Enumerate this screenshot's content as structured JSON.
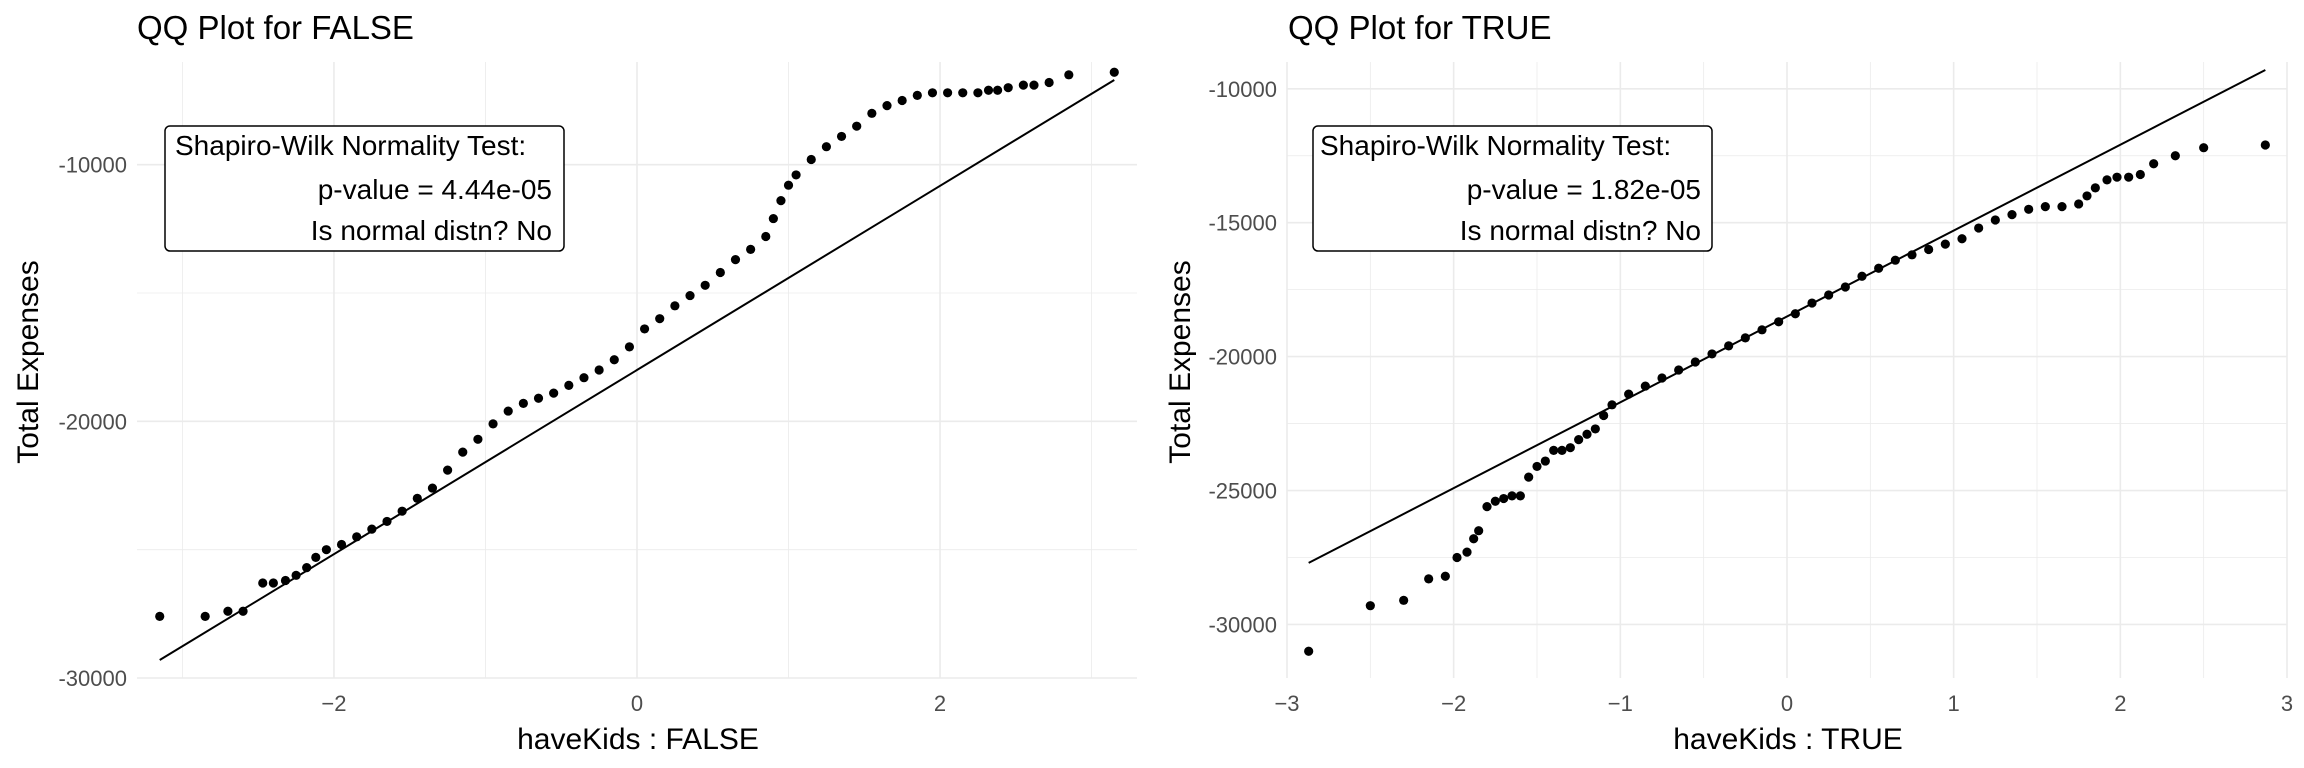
{
  "chart_data": [
    {
      "type": "scatter",
      "title": "QQ Plot for FALSE",
      "xlabel": "haveKids : FALSE",
      "ylabel": "Total Expenses",
      "xlim": [
        -3.3,
        3.3
      ],
      "ylim": [
        -30000,
        -6000
      ],
      "xticks": [
        -2,
        0,
        2
      ],
      "yticks": [
        -30000,
        -20000,
        -10000
      ],
      "grid": true,
      "reference_line": {
        "x": [
          -3.15,
          3.15
        ],
        "y": [
          -29300,
          -6700
        ]
      },
      "annotation": {
        "line1": "Shapiro-Wilk Normality Test:",
        "line2": "p-value =  4.44e-05",
        "line3": "Is normal distn?  No",
        "placement": "top-left"
      },
      "points": [
        [
          -3.15,
          -27600
        ],
        [
          -2.85,
          -27600
        ],
        [
          -2.7,
          -27400
        ],
        [
          -2.6,
          -27400
        ],
        [
          -2.47,
          -26300
        ],
        [
          -2.4,
          -26300
        ],
        [
          -2.32,
          -26200
        ],
        [
          -2.25,
          -26000
        ],
        [
          -2.18,
          -25700
        ],
        [
          -2.12,
          -25300
        ],
        [
          -2.05,
          -25000
        ],
        [
          -1.95,
          -24800
        ],
        [
          -1.85,
          -24500
        ],
        [
          -1.75,
          -24200
        ],
        [
          -1.65,
          -23900
        ],
        [
          -1.55,
          -23500
        ],
        [
          -1.45,
          -23000
        ],
        [
          -1.35,
          -22600
        ],
        [
          -1.25,
          -21900
        ],
        [
          -1.15,
          -21200
        ],
        [
          -1.05,
          -20700
        ],
        [
          -0.95,
          -20100
        ],
        [
          -0.85,
          -19600
        ],
        [
          -0.75,
          -19300
        ],
        [
          -0.65,
          -19100
        ],
        [
          -0.55,
          -18900
        ],
        [
          -0.45,
          -18600
        ],
        [
          -0.35,
          -18300
        ],
        [
          -0.25,
          -18000
        ],
        [
          -0.15,
          -17600
        ],
        [
          -0.05,
          -17100
        ],
        [
          0.05,
          -16400
        ],
        [
          0.15,
          -16000
        ],
        [
          0.25,
          -15500
        ],
        [
          0.35,
          -15100
        ],
        [
          0.45,
          -14700
        ],
        [
          0.55,
          -14200
        ],
        [
          0.65,
          -13700
        ],
        [
          0.75,
          -13300
        ],
        [
          0.85,
          -12800
        ],
        [
          0.9,
          -12100
        ],
        [
          0.95,
          -11400
        ],
        [
          1.0,
          -10800
        ],
        [
          1.05,
          -10400
        ],
        [
          1.15,
          -9800
        ],
        [
          1.25,
          -9300
        ],
        [
          1.35,
          -8900
        ],
        [
          1.45,
          -8500
        ],
        [
          1.55,
          -8000
        ],
        [
          1.65,
          -7700
        ],
        [
          1.75,
          -7500
        ],
        [
          1.85,
          -7300
        ],
        [
          1.95,
          -7200
        ],
        [
          2.05,
          -7200
        ],
        [
          2.15,
          -7200
        ],
        [
          2.25,
          -7200
        ],
        [
          2.32,
          -7100
        ],
        [
          2.38,
          -7100
        ],
        [
          2.45,
          -7000
        ],
        [
          2.55,
          -6900
        ],
        [
          2.62,
          -6900
        ],
        [
          2.72,
          -6800
        ],
        [
          2.85,
          -6500
        ],
        [
          3.15,
          -6400
        ]
      ]
    },
    {
      "type": "scatter",
      "title": "QQ Plot for TRUE",
      "xlabel": "haveKids : TRUE",
      "ylabel": "Total Expenses",
      "xlim": [
        -3.0,
        3.0
      ],
      "ylim": [
        -32000,
        -9000
      ],
      "xticks": [
        -3,
        -2,
        -1,
        0,
        1,
        2,
        3
      ],
      "yticks": [
        -30000,
        -25000,
        -20000,
        -15000,
        -10000
      ],
      "grid": true,
      "reference_line": {
        "x": [
          -2.87,
          2.87
        ],
        "y": [
          -27700,
          -9300
        ]
      },
      "annotation": {
        "line1": "Shapiro-Wilk Normality Test:",
        "line2": "p-value =  1.82e-05",
        "line3": "Is normal distn?  No",
        "placement": "top-left"
      },
      "points": [
        [
          -2.87,
          -31000
        ],
        [
          -2.5,
          -29300
        ],
        [
          -2.3,
          -29100
        ],
        [
          -2.15,
          -28300
        ],
        [
          -2.05,
          -28200
        ],
        [
          -1.98,
          -27500
        ],
        [
          -1.92,
          -27300
        ],
        [
          -1.88,
          -26800
        ],
        [
          -1.85,
          -26500
        ],
        [
          -1.8,
          -25600
        ],
        [
          -1.75,
          -25400
        ],
        [
          -1.7,
          -25300
        ],
        [
          -1.65,
          -25200
        ],
        [
          -1.6,
          -25200
        ],
        [
          -1.55,
          -24500
        ],
        [
          -1.5,
          -24100
        ],
        [
          -1.45,
          -23900
        ],
        [
          -1.4,
          -23500
        ],
        [
          -1.35,
          -23500
        ],
        [
          -1.3,
          -23400
        ],
        [
          -1.25,
          -23100
        ],
        [
          -1.2,
          -22900
        ],
        [
          -1.15,
          -22700
        ],
        [
          -1.1,
          -22200
        ],
        [
          -1.05,
          -21800
        ],
        [
          -0.95,
          -21400
        ],
        [
          -0.85,
          -21100
        ],
        [
          -0.75,
          -20800
        ],
        [
          -0.65,
          -20500
        ],
        [
          -0.55,
          -20200
        ],
        [
          -0.45,
          -19900
        ],
        [
          -0.35,
          -19600
        ],
        [
          -0.25,
          -19300
        ],
        [
          -0.15,
          -19000
        ],
        [
          -0.05,
          -18700
        ],
        [
          0.05,
          -18400
        ],
        [
          0.15,
          -18000
        ],
        [
          0.25,
          -17700
        ],
        [
          0.35,
          -17400
        ],
        [
          0.45,
          -17000
        ],
        [
          0.55,
          -16700
        ],
        [
          0.65,
          -16400
        ],
        [
          0.75,
          -16200
        ],
        [
          0.85,
          -16000
        ],
        [
          0.95,
          -15800
        ],
        [
          1.05,
          -15600
        ],
        [
          1.15,
          -15200
        ],
        [
          1.25,
          -14900
        ],
        [
          1.35,
          -14700
        ],
        [
          1.45,
          -14500
        ],
        [
          1.55,
          -14400
        ],
        [
          1.65,
          -14400
        ],
        [
          1.75,
          -14300
        ],
        [
          1.8,
          -14000
        ],
        [
          1.85,
          -13700
        ],
        [
          1.92,
          -13400
        ],
        [
          1.98,
          -13300
        ],
        [
          2.05,
          -13300
        ],
        [
          2.12,
          -13200
        ],
        [
          2.2,
          -12800
        ],
        [
          2.33,
          -12500
        ],
        [
          2.5,
          -12200
        ],
        [
          2.87,
          -12100
        ]
      ]
    }
  ]
}
